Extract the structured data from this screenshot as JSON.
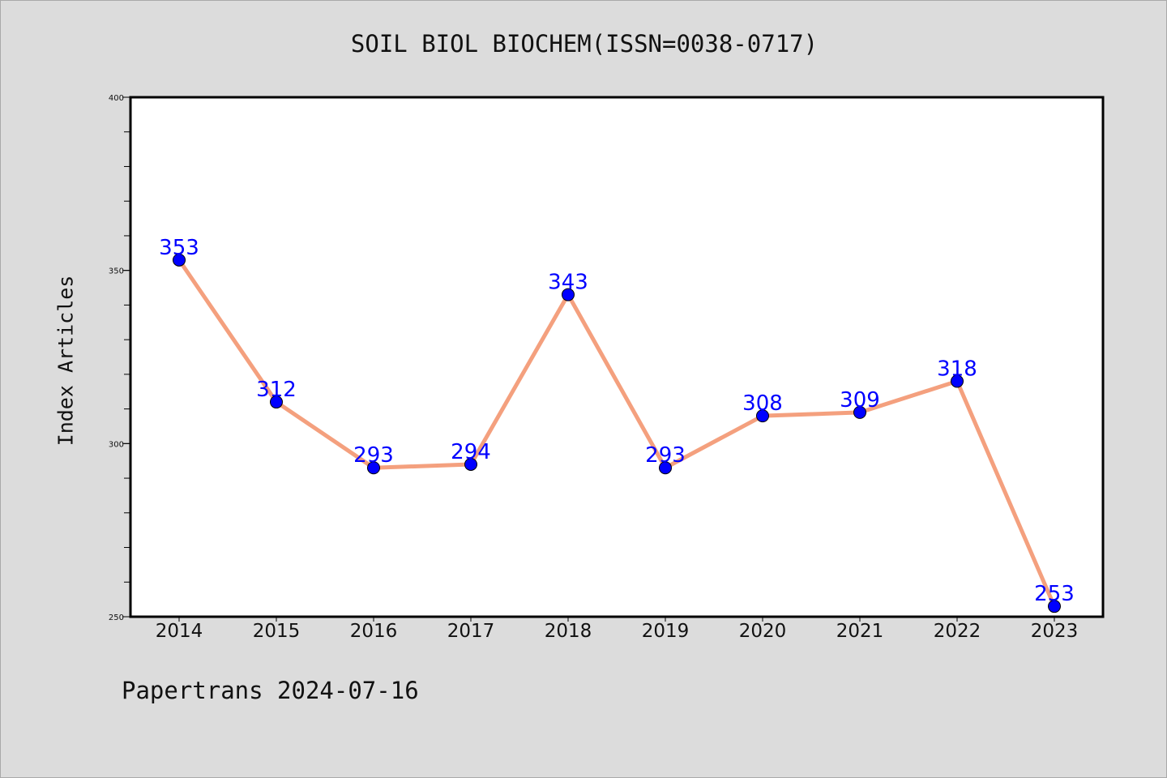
{
  "chart_data": {
    "type": "line",
    "title": "SOIL BIOL BIOCHEM(ISSN=0038-0717)",
    "xlabel": "",
    "ylabel": "Index Articles",
    "categories": [
      "2014",
      "2015",
      "2016",
      "2017",
      "2018",
      "2019",
      "2020",
      "2021",
      "2022",
      "2023"
    ],
    "series": [
      {
        "values": [
          353,
          312,
          293,
          294,
          343,
          293,
          308,
          309,
          318,
          253
        ]
      }
    ],
    "ylim": [
      250,
      400
    ],
    "yticks": [
      250,
      300,
      350,
      400
    ],
    "y_minor_step": 10,
    "grid": false,
    "legend": "none",
    "data_labels": true,
    "colors": {
      "line": "#f4a07e",
      "marker": "#0000ff",
      "data_label": "#0000ff",
      "background": "#dcdcdc",
      "plot_background": "#ffffff"
    }
  },
  "footer": {
    "text": "Papertrans 2024-07-16"
  }
}
